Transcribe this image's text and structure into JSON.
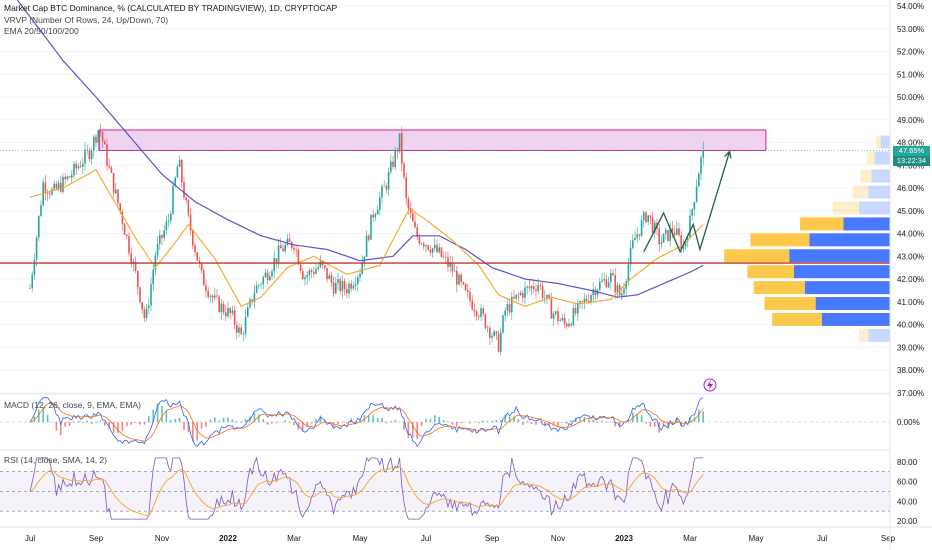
{
  "legend": {
    "title": "Market Cap BTC Dominance, % (CALCULATED BY TRADINGVIEW), 1D, CRYPTOCAP",
    "vrvp": "VRVP (Number Of Rows, 24, Up/Down, 70)",
    "ema": "EMA 20/50/100/200",
    "macd": "MACD (12, 26, close, 9, EMA, EMA)",
    "rsi": "RSI (14, close, SMA, 14, 2)"
  },
  "price_badge": {
    "price": "47.65%",
    "countdown": "13:22:34"
  },
  "colors": {
    "up": "#26a69a",
    "down": "#ef5350",
    "ema_short": "#f5a623",
    "ema_long": "#5b55c9",
    "zone_fill": "#e9c4ea",
    "zone_border": "#d020a0",
    "support": "#c0392b",
    "vp_up": "#2962ff",
    "vp_down": "#fbc02d",
    "arrow": "#1b5e4b",
    "badge": "#26a69a"
  },
  "chart_data": [
    {
      "type": "candlestick",
      "title": "Market Cap BTC Dominance, % (CALCULATED BY TRADINGVIEW), 1D, CRYPTOCAP",
      "unit": "%",
      "x": [
        "Jul",
        "Sep",
        "Nov",
        "2022",
        "Mar",
        "May",
        "Jul",
        "Sep",
        "Nov",
        "2023",
        "Mar",
        "May",
        "Jul",
        "Sep"
      ],
      "x_bold": [
        "2022",
        "2023"
      ],
      "ylim": [
        36.5,
        54.3
      ],
      "yticks": [
        "54.00%",
        "53.00%",
        "52.00%",
        "51.00%",
        "50.00%",
        "49.00%",
        "48.00%",
        "47.00%",
        "46.00%",
        "45.00%",
        "44.00%",
        "43.00%",
        "42.00%",
        "41.00%",
        "40.00%",
        "39.00%",
        "38.00%",
        "37.00%"
      ],
      "key_points": [
        {
          "t": 0.0,
          "v": 41.6
        },
        {
          "t": 0.2,
          "v": 46.2
        },
        {
          "t": 0.35,
          "v": 45.8
        },
        {
          "t": 0.6,
          "v": 46.5
        },
        {
          "t": 0.9,
          "v": 47.6
        },
        {
          "t": 1.05,
          "v": 48.7
        },
        {
          "t": 1.2,
          "v": 46.8
        },
        {
          "t": 1.4,
          "v": 44.6
        },
        {
          "t": 1.6,
          "v": 42.2
        },
        {
          "t": 1.75,
          "v": 40.1
        },
        {
          "t": 1.9,
          "v": 43.1
        },
        {
          "t": 2.1,
          "v": 44.6
        },
        {
          "t": 2.25,
          "v": 47.2
        },
        {
          "t": 2.4,
          "v": 44.6
        },
        {
          "t": 2.6,
          "v": 42.1
        },
        {
          "t": 2.8,
          "v": 41.0
        },
        {
          "t": 3.05,
          "v": 40.4
        },
        {
          "t": 3.2,
          "v": 39.5
        },
        {
          "t": 3.4,
          "v": 41.5
        },
        {
          "t": 3.6,
          "v": 42.3
        },
        {
          "t": 3.8,
          "v": 43.3
        },
        {
          "t": 4.0,
          "v": 43.6
        },
        {
          "t": 4.15,
          "v": 42.1
        },
        {
          "t": 4.4,
          "v": 42.6
        },
        {
          "t": 4.6,
          "v": 41.7
        },
        {
          "t": 4.8,
          "v": 41.6
        },
        {
          "t": 5.0,
          "v": 42.4
        },
        {
          "t": 5.2,
          "v": 44.9
        },
        {
          "t": 5.4,
          "v": 46.2
        },
        {
          "t": 5.6,
          "v": 48.1
        },
        {
          "t": 5.7,
          "v": 45.4
        },
        {
          "t": 5.85,
          "v": 43.9
        },
        {
          "t": 6.0,
          "v": 43.6
        },
        {
          "t": 6.2,
          "v": 43.1
        },
        {
          "t": 6.4,
          "v": 42.4
        },
        {
          "t": 6.6,
          "v": 41.3
        },
        {
          "t": 6.8,
          "v": 40.6
        },
        {
          "t": 7.0,
          "v": 39.6
        },
        {
          "t": 7.1,
          "v": 39.1
        },
        {
          "t": 7.2,
          "v": 40.6
        },
        {
          "t": 7.45,
          "v": 41.4
        },
        {
          "t": 7.7,
          "v": 41.8
        },
        {
          "t": 7.9,
          "v": 40.6
        },
        {
          "t": 8.1,
          "v": 40.0
        },
        {
          "t": 8.3,
          "v": 40.6
        },
        {
          "t": 8.55,
          "v": 41.6
        },
        {
          "t": 8.8,
          "v": 42.1
        },
        {
          "t": 8.95,
          "v": 41.2
        },
        {
          "t": 9.15,
          "v": 43.7
        },
        {
          "t": 9.35,
          "v": 44.9
        },
        {
          "t": 9.55,
          "v": 43.6
        },
        {
          "t": 9.75,
          "v": 44.2
        },
        {
          "t": 9.9,
          "v": 43.4
        },
        {
          "t": 10.0,
          "v": 44.5
        },
        {
          "t": 10.12,
          "v": 46.6
        },
        {
          "t": 10.2,
          "v": 47.65
        }
      ],
      "ema_short": [
        {
          "t": 0.0,
          "v": 45.6
        },
        {
          "t": 0.5,
          "v": 46.0
        },
        {
          "t": 1.0,
          "v": 46.8
        },
        {
          "t": 1.6,
          "v": 43.8
        },
        {
          "t": 1.9,
          "v": 42.5
        },
        {
          "t": 2.2,
          "v": 43.6
        },
        {
          "t": 2.4,
          "v": 44.4
        },
        {
          "t": 2.8,
          "v": 42.9
        },
        {
          "t": 3.2,
          "v": 40.8
        },
        {
          "t": 3.5,
          "v": 41.2
        },
        {
          "t": 3.9,
          "v": 42.5
        },
        {
          "t": 4.3,
          "v": 43.0
        },
        {
          "t": 4.8,
          "v": 42.2
        },
        {
          "t": 5.3,
          "v": 42.6
        },
        {
          "t": 5.55,
          "v": 44.0
        },
        {
          "t": 5.75,
          "v": 45.1
        },
        {
          "t": 6.0,
          "v": 44.6
        },
        {
          "t": 6.4,
          "v": 43.7
        },
        {
          "t": 6.8,
          "v": 42.6
        },
        {
          "t": 7.1,
          "v": 41.3
        },
        {
          "t": 7.5,
          "v": 40.8
        },
        {
          "t": 7.9,
          "v": 41.2
        },
        {
          "t": 8.3,
          "v": 40.9
        },
        {
          "t": 8.8,
          "v": 41.1
        },
        {
          "t": 9.1,
          "v": 42.0
        },
        {
          "t": 9.5,
          "v": 42.9
        },
        {
          "t": 9.9,
          "v": 43.5
        },
        {
          "t": 10.2,
          "v": 44.4
        }
      ],
      "ema_long": [
        {
          "t": -0.2,
          "v": 54.3
        },
        {
          "t": 0.5,
          "v": 51.6
        },
        {
          "t": 1.0,
          "v": 50.0
        },
        {
          "t": 1.5,
          "v": 48.3
        },
        {
          "t": 2.0,
          "v": 46.6
        },
        {
          "t": 2.5,
          "v": 45.4
        },
        {
          "t": 3.0,
          "v": 44.6
        },
        {
          "t": 3.5,
          "v": 43.9
        },
        {
          "t": 4.0,
          "v": 43.5
        },
        {
          "t": 4.5,
          "v": 43.3
        },
        {
          "t": 5.0,
          "v": 42.8
        },
        {
          "t": 5.5,
          "v": 43.0
        },
        {
          "t": 5.8,
          "v": 43.9
        },
        {
          "t": 6.2,
          "v": 43.9
        },
        {
          "t": 6.6,
          "v": 43.3
        },
        {
          "t": 7.0,
          "v": 42.5
        },
        {
          "t": 7.5,
          "v": 42.0
        },
        {
          "t": 8.0,
          "v": 41.8
        },
        {
          "t": 8.5,
          "v": 41.5
        },
        {
          "t": 8.9,
          "v": 41.2
        },
        {
          "t": 9.2,
          "v": 41.3
        },
        {
          "t": 9.6,
          "v": 41.8
        },
        {
          "t": 10.0,
          "v": 42.3
        },
        {
          "t": 10.2,
          "v": 42.6
        }
      ],
      "resistance_zone": {
        "t_start": 1.05,
        "t_end": 11.15,
        "v_low": 47.65,
        "v_high": 48.55
      },
      "support_level": 42.7,
      "current_price": 47.65,
      "projection_arrow": [
        {
          "t": 9.3,
          "v": 43.2
        },
        {
          "t": 9.6,
          "v": 44.9
        },
        {
          "t": 9.85,
          "v": 43.2
        },
        {
          "t": 10.05,
          "v": 44.4
        },
        {
          "t": 10.15,
          "v": 43.3
        },
        {
          "t": 10.6,
          "v": 47.6
        }
      ],
      "volume_profile": [
        {
          "v": 48.0,
          "up": 6,
          "down": 3
        },
        {
          "v": 47.3,
          "up": 10,
          "down": 5
        },
        {
          "v": 46.5,
          "up": 12,
          "down": 7
        },
        {
          "v": 45.8,
          "up": 14,
          "down": 10
        },
        {
          "v": 45.1,
          "up": 20,
          "down": 17
        },
        {
          "v": 44.4,
          "up": 30,
          "down": 28
        },
        {
          "v": 43.7,
          "up": 52,
          "down": 38
        },
        {
          "v": 43.0,
          "up": 65,
          "down": 42
        },
        {
          "v": 42.3,
          "up": 62,
          "down": 30
        },
        {
          "v": 41.6,
          "up": 55,
          "down": 33
        },
        {
          "v": 40.9,
          "up": 48,
          "down": 33
        },
        {
          "v": 40.2,
          "up": 44,
          "down": 32
        },
        {
          "v": 39.5,
          "up": 14,
          "down": 6
        }
      ]
    },
    {
      "type": "line",
      "title": "MACD (12, 26, close, 9, EMA, EMA)",
      "yticks": [
        "0.00%"
      ],
      "ylim": [
        -1.5,
        1.5
      ],
      "zero_line": 0
    },
    {
      "type": "line",
      "title": "RSI (14, close, SMA, 14, 2)",
      "ylim": [
        15,
        90
      ],
      "yticks": [
        "80.00",
        "60.00",
        "40.00",
        "20.00"
      ],
      "upper_band": 70,
      "middle_band": 50,
      "lower_band": 30
    }
  ]
}
